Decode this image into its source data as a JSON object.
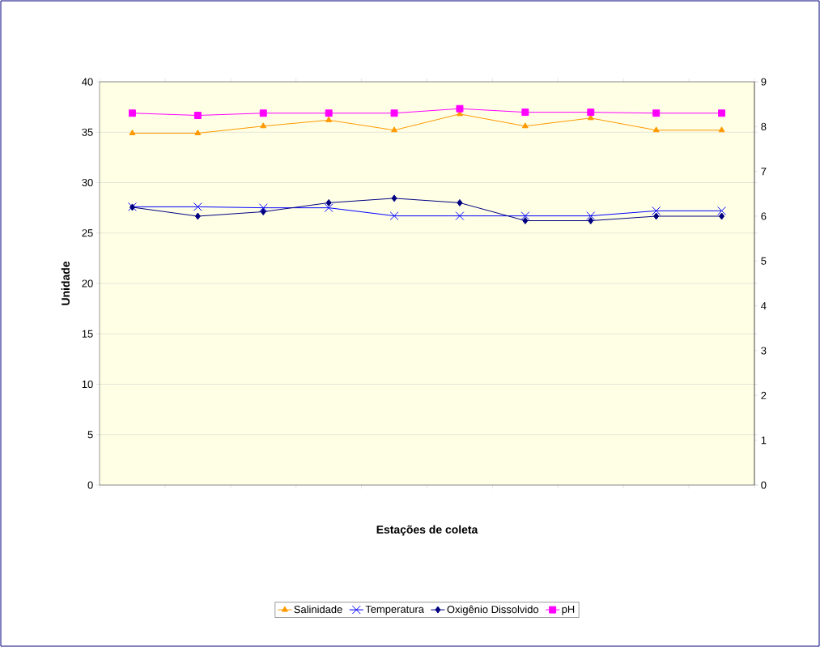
{
  "chart_data": {
    "type": "line",
    "xlabel": "Estações de coleta",
    "ylabel": "Unidade",
    "categories": [
      null,
      null,
      null,
      null,
      null,
      null,
      null,
      null,
      null,
      null
    ],
    "series": [
      {
        "name": "Salinidade",
        "color": "#ff9900",
        "marker": "triangle",
        "values": [
          34.9,
          34.9,
          35.6,
          36.2,
          35.2,
          36.8,
          35.6,
          36.4,
          35.2,
          35.2
        ]
      },
      {
        "name": "Temperatura",
        "color": "#0000ff",
        "marker": "cross",
        "values": [
          27.6,
          27.6,
          27.5,
          27.5,
          26.7,
          26.7,
          26.7,
          26.7,
          27.2,
          27.2
        ]
      },
      {
        "name": "Oxigênio Dissolvido",
        "color": "#000080",
        "marker": "diamond",
        "axis": "y2",
        "values": [
          6.2,
          6.0,
          6.1,
          6.3,
          6.4,
          6.3,
          5.9,
          5.9,
          6.0,
          6.0
        ]
      },
      {
        "name": "pH",
        "color": "#ff00ff",
        "marker": "square",
        "axis": "y2",
        "values": [
          8.3,
          8.25,
          8.3,
          8.3,
          8.3,
          8.4,
          8.32,
          8.32,
          8.3,
          8.3
        ]
      }
    ],
    "ylim": [
      0,
      40
    ],
    "yticks": [
      0,
      5,
      10,
      15,
      20,
      25,
      30,
      35,
      40
    ],
    "y2lim": [
      0,
      9
    ],
    "y2ticks": [
      0,
      1,
      2,
      3,
      4,
      5,
      6,
      7,
      8,
      9
    ],
    "grid": "y",
    "legend": "bottom",
    "tick_labels": "y"
  }
}
